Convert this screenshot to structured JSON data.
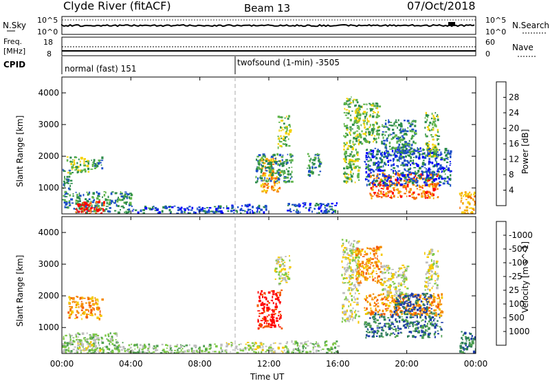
{
  "header": {
    "station": "Clyde River (fitACF)",
    "beam": "Beam 13",
    "date": "07/Oct/2018"
  },
  "noise_panel": {
    "left_label": "N.Sky",
    "left_ticks": [
      "10^5",
      "10^0"
    ],
    "right_ticks": [
      "10^5",
      "10^0"
    ],
    "right_label": "N.Search"
  },
  "freq_panel": {
    "left_label_1": "Freq.",
    "left_label_2": "[MHz]",
    "left_ticks": [
      "18",
      "8"
    ],
    "right_ticks": [
      "60",
      "0"
    ],
    "right_label": "Nave"
  },
  "cpid": {
    "label": "CPID",
    "segments": [
      {
        "start_hour": 0,
        "text": "normal (fast) 151"
      },
      {
        "start_hour": 10,
        "text": "twofsound (1-min) -3505"
      }
    ]
  },
  "chart_data": [
    {
      "type": "heatmap",
      "name": "power",
      "ylabel": "Slant Range [km]",
      "xlabel": "",
      "xlim": [
        0,
        24
      ],
      "ylim": [
        180,
        4500
      ],
      "yticks": [
        1000,
        2000,
        3000,
        4000
      ],
      "colorbar": {
        "label": "Power [dB]",
        "tick_labels": [
          "4",
          "8",
          "12",
          "16",
          "20",
          "24",
          "28"
        ],
        "colors": [
          "#0000ff",
          "#1e50c8",
          "#2d8c4b",
          "#5fb44b",
          "#f5d200",
          "#f5aa00",
          "#f56e00",
          "#ff0000"
        ]
      },
      "regions": [
        {
          "t0": 0.0,
          "t1": 0.5,
          "r0": 800,
          "r1": 1600,
          "level": 2
        },
        {
          "t0": 0.2,
          "t1": 1.5,
          "r0": 1500,
          "r1": 2000,
          "level": 3
        },
        {
          "t0": 1.6,
          "t1": 2.3,
          "r0": 1600,
          "r1": 2000,
          "level": 2
        },
        {
          "t0": 0.0,
          "t1": 4.0,
          "r0": 250,
          "r1": 900,
          "level": 2
        },
        {
          "t0": 0.7,
          "t1": 2.4,
          "r0": 200,
          "r1": 600,
          "level": 7
        },
        {
          "t0": 4.0,
          "t1": 9.5,
          "r0": 220,
          "r1": 450,
          "level": 1
        },
        {
          "t0": 9.5,
          "t1": 11.8,
          "r0": 220,
          "r1": 500,
          "level": 1
        },
        {
          "t0": 11.5,
          "t1": 12.6,
          "r0": 900,
          "r1": 2000,
          "level": 5
        },
        {
          "t0": 11.2,
          "t1": 13.3,
          "r0": 1200,
          "r1": 2100,
          "level": 2
        },
        {
          "t0": 12.5,
          "t1": 13.2,
          "r0": 2300,
          "r1": 3300,
          "level": 3
        },
        {
          "t0": 13.0,
          "t1": 16.0,
          "r0": 220,
          "r1": 550,
          "level": 1
        },
        {
          "t0": 14.2,
          "t1": 15.0,
          "r0": 1400,
          "r1": 2100,
          "level": 2
        },
        {
          "t0": 16.3,
          "t1": 17.2,
          "r0": 1200,
          "r1": 3900,
          "level": 3
        },
        {
          "t0": 17.0,
          "t1": 18.4,
          "r0": 2400,
          "r1": 3700,
          "level": 3
        },
        {
          "t0": 17.8,
          "t1": 21.8,
          "r0": 700,
          "r1": 1500,
          "level": 6
        },
        {
          "t0": 17.5,
          "t1": 22.5,
          "r0": 1100,
          "r1": 2300,
          "level": 1
        },
        {
          "t0": 18.5,
          "t1": 20.5,
          "r0": 2000,
          "r1": 3200,
          "level": 2
        },
        {
          "t0": 21.0,
          "t1": 21.8,
          "r0": 2000,
          "r1": 3400,
          "level": 3
        },
        {
          "t0": 23.0,
          "t1": 24.0,
          "r0": 200,
          "r1": 900,
          "level": 5
        }
      ]
    },
    {
      "type": "heatmap",
      "name": "velocity",
      "ylabel": "Slant Range [km]",
      "xlabel": "Time UT",
      "xlim": [
        0,
        24
      ],
      "ylim": [
        180,
        4500
      ],
      "yticks": [
        1000,
        2000,
        3000,
        4000
      ],
      "xtick_labels": [
        "00:00",
        "04:00",
        "08:00",
        "12:00",
        "16:00",
        "20:00",
        "00:00"
      ],
      "colorbar": {
        "label": "Velocity [m s^-1]",
        "tick_labels": [
          "1000",
          "500",
          "100",
          "25",
          "-25",
          "-100",
          "-500",
          "-1000"
        ],
        "colors": [
          "#1e3caa",
          "#2d7d5a",
          "#4fa050",
          "#7dc846",
          "#bebebe",
          "#f5c800",
          "#f58c00",
          "#f55a00",
          "#ff0000"
        ]
      },
      "regions": [
        {
          "t0": 0.3,
          "t1": 2.3,
          "r0": 1300,
          "r1": 2000,
          "level": 6
        },
        {
          "t0": 0.0,
          "t1": 3.5,
          "r0": 200,
          "r1": 850,
          "level": 3
        },
        {
          "t0": 0.8,
          "t1": 2.2,
          "r0": 300,
          "r1": 700,
          "level": 4
        },
        {
          "t0": 3.5,
          "t1": 9.5,
          "r0": 200,
          "r1": 500,
          "level": 3
        },
        {
          "t0": 9.5,
          "t1": 13.0,
          "r0": 200,
          "r1": 550,
          "level": 4
        },
        {
          "t0": 11.3,
          "t1": 12.7,
          "r0": 1000,
          "r1": 2200,
          "level": 8
        },
        {
          "t0": 12.3,
          "t1": 13.2,
          "r0": 2400,
          "r1": 3300,
          "level": 4
        },
        {
          "t0": 13.0,
          "t1": 16.0,
          "r0": 200,
          "r1": 600,
          "level": 3
        },
        {
          "t0": 16.2,
          "t1": 17.2,
          "r0": 1200,
          "r1": 3800,
          "level": 4
        },
        {
          "t0": 17.0,
          "t1": 18.5,
          "r0": 2400,
          "r1": 3600,
          "level": 6
        },
        {
          "t0": 17.5,
          "t1": 22.0,
          "r0": 700,
          "r1": 1500,
          "level": 1
        },
        {
          "t0": 17.5,
          "t1": 22.0,
          "r0": 1400,
          "r1": 2100,
          "level": 6
        },
        {
          "t0": 19.2,
          "t1": 21.4,
          "r0": 1500,
          "r1": 2100,
          "level": 0
        },
        {
          "t0": 18.5,
          "t1": 20.0,
          "r0": 2000,
          "r1": 3000,
          "level": 4
        },
        {
          "t0": 21.0,
          "t1": 21.8,
          "r0": 2200,
          "r1": 3500,
          "level": 4
        },
        {
          "t0": 23.0,
          "t1": 24.0,
          "r0": 200,
          "r1": 900,
          "level": 1
        }
      ]
    }
  ]
}
